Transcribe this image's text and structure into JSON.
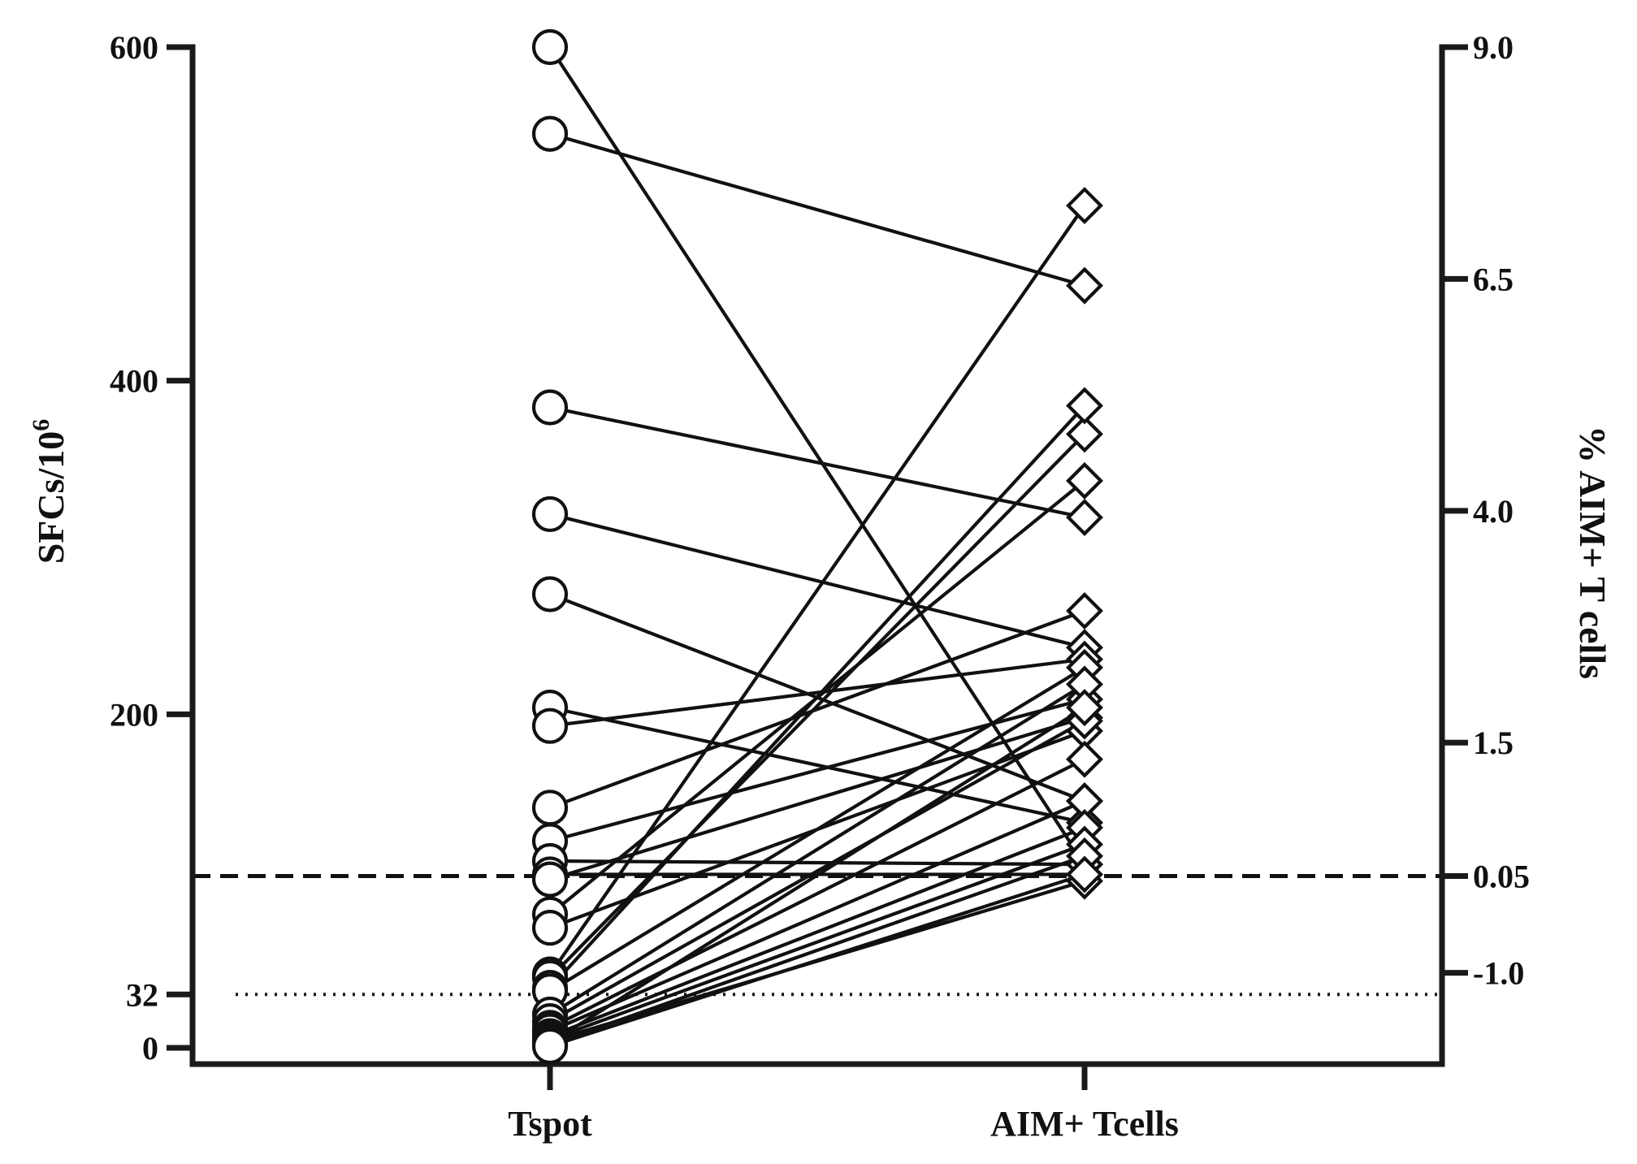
{
  "chart_data": {
    "type": "line",
    "subtype": "paired dot plot (before-after), dual y-axis",
    "categories": [
      "Tspot",
      "AIM+ Tcells"
    ],
    "y_left": {
      "label_main": "SFCs/10",
      "label_sup": "6",
      "ticks": [
        {
          "value": 0,
          "label": "0"
        },
        {
          "value": 32,
          "label": "32"
        },
        {
          "value": 200,
          "label": "200"
        },
        {
          "value": 400,
          "label": "400"
        },
        {
          "value": 600,
          "label": "600"
        }
      ],
      "range": [
        -10,
        600
      ]
    },
    "y_right": {
      "label": "% AIM+ T cells",
      "ticks": [
        {
          "label": "9.0",
          "left_equiv": 600
        },
        {
          "label": "6.5",
          "left_equiv": 461
        },
        {
          "label": "4.0",
          "left_equiv": 322
        },
        {
          "label": "1.5",
          "left_equiv": 183
        },
        {
          "label": "0.05",
          "left_equiv": 103
        },
        {
          "label": "-1.0",
          "left_equiv": 45
        }
      ],
      "scale_note": "non-linear (segmented) axis"
    },
    "reference_lines": [
      {
        "style": "dashed",
        "left_value": 103,
        "right_label": "0.05"
      },
      {
        "style": "dotted",
        "left_value": 32
      }
    ],
    "markers": {
      "Tspot": "open-circle",
      "AIM+ Tcells": "open-diamond"
    },
    "pairs": [
      {
        "tspot": 600,
        "aim": 110
      },
      {
        "tspot": 548,
        "aim": 457
      },
      {
        "tspot": 384,
        "aim": 318
      },
      {
        "tspot": 320,
        "aim": 240
      },
      {
        "tspot": 272,
        "aim": 148
      },
      {
        "tspot": 204,
        "aim": 135
      },
      {
        "tspot": 193,
        "aim": 233
      },
      {
        "tspot": 144,
        "aim": 262
      },
      {
        "tspot": 124,
        "aim": 209
      },
      {
        "tspot": 112,
        "aim": 110
      },
      {
        "tspot": 104,
        "aim": 104
      },
      {
        "tspot": 101,
        "aim": 198
      },
      {
        "tspot": 80,
        "aim": 340
      },
      {
        "tspot": 72,
        "aim": 190
      },
      {
        "tspot": 44,
        "aim": 505
      },
      {
        "tspot": 42,
        "aim": 368
      },
      {
        "tspot": 36,
        "aim": 385
      },
      {
        "tspot": 34,
        "aim": 228
      },
      {
        "tspot": 20,
        "aim": 218
      },
      {
        "tspot": 16,
        "aim": 196
      },
      {
        "tspot": 12,
        "aim": 173
      },
      {
        "tspot": 10,
        "aim": 148
      },
      {
        "tspot": 7,
        "aim": 132
      },
      {
        "tspot": 5,
        "aim": 122
      },
      {
        "tspot": 4,
        "aim": 100
      },
      {
        "tspot": 3,
        "aim": 204
      },
      {
        "tspot": 2,
        "aim": 115
      },
      {
        "tspot": 1,
        "aim": 104
      }
    ]
  }
}
